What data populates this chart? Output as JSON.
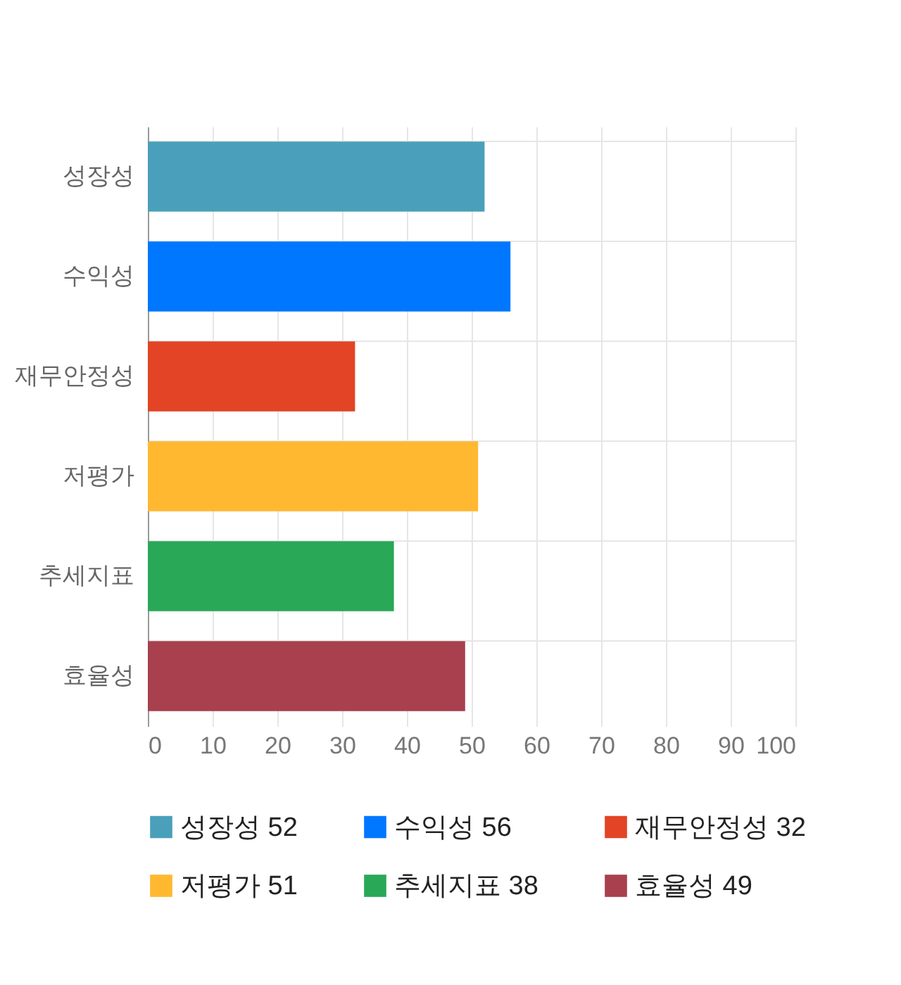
{
  "chart_data": {
    "type": "bar",
    "orientation": "horizontal",
    "stacked": true,
    "categories": [
      "성장성",
      "수익성",
      "재무안정성",
      "저평가",
      "추세지표",
      "효율성"
    ],
    "series": [
      {
        "name": "성장성 52",
        "color": "#4aa0ba",
        "values": [
          52,
          null,
          null,
          null,
          null,
          null
        ]
      },
      {
        "name": "수익성 56",
        "color": "#0077ff",
        "values": [
          null,
          56,
          null,
          null,
          null,
          null
        ]
      },
      {
        "name": "재무안정성 32",
        "color": "#e24425",
        "values": [
          null,
          null,
          32,
          null,
          null,
          null
        ]
      },
      {
        "name": "저평가 51",
        "color": "#ffb830",
        "values": [
          null,
          null,
          null,
          51,
          null,
          null
        ]
      },
      {
        "name": "추세지표 38",
        "color": "#29a857",
        "values": [
          null,
          null,
          null,
          null,
          38,
          null
        ]
      },
      {
        "name": "효율성 49",
        "color": "#a8404e",
        "values": [
          null,
          null,
          null,
          null,
          null,
          49
        ]
      }
    ],
    "xlim": [
      0,
      100
    ],
    "xticks": [
      0,
      10,
      20,
      30,
      40,
      50,
      60,
      70,
      80,
      90,
      100
    ],
    "grid": true,
    "legend": "bottom"
  }
}
